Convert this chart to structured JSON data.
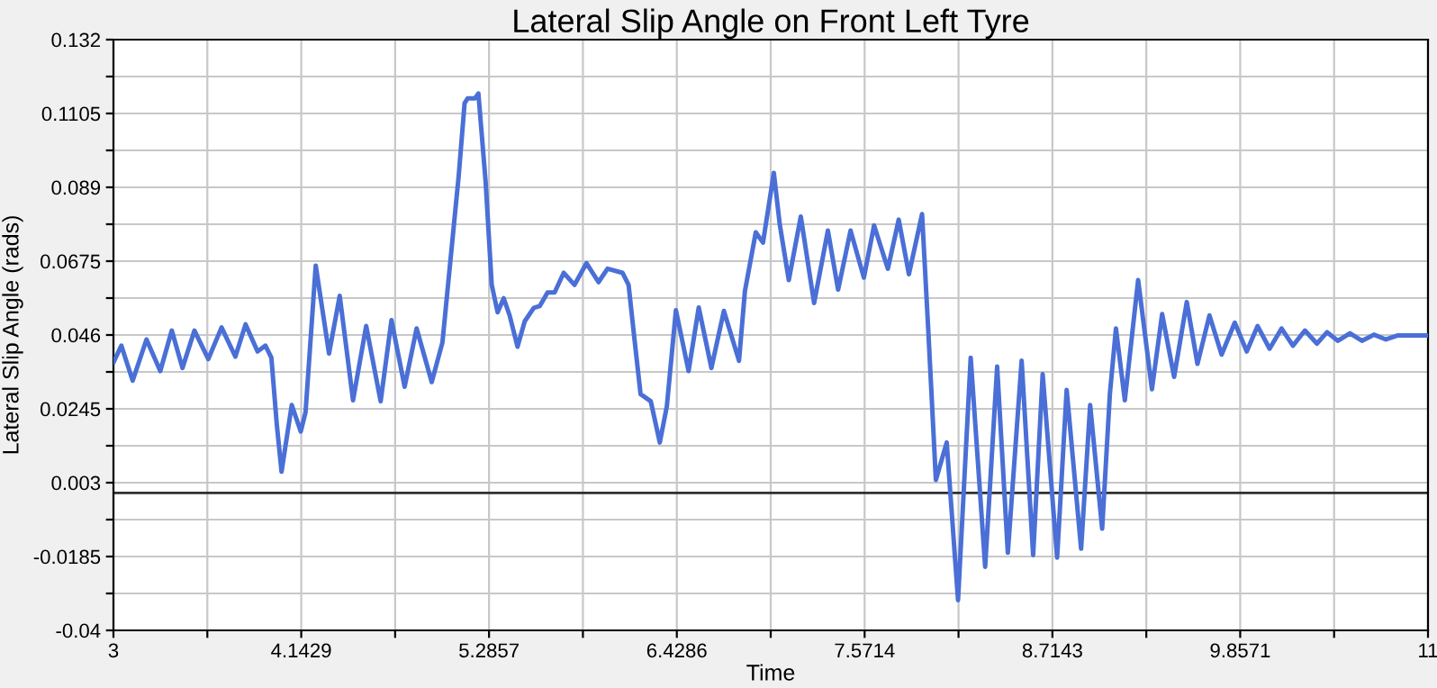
{
  "chart_data": {
    "type": "line",
    "title": "Lateral Slip Angle on Front Left Tyre",
    "xlabel": "Time",
    "ylabel": "Lateral Slip Angle (rads)",
    "xlim": [
      3,
      11
    ],
    "ylim": [
      -0.04,
      0.132
    ],
    "xticks": [
      3,
      {
        "value": 3.5714,
        "label": null
      },
      4.1429,
      {
        "value": 4.7143,
        "label": null
      },
      5.2857,
      {
        "value": 5.8571,
        "label": null
      },
      6.4286,
      {
        "value": 7.0,
        "label": null
      },
      7.5714,
      {
        "value": 8.1429,
        "label": null
      },
      8.7143,
      {
        "value": 9.2857,
        "label": null
      },
      9.8571,
      {
        "value": 10.4286,
        "label": null
      },
      11
    ],
    "yticks": [
      -0.04,
      {
        "value": -0.02925,
        "label": null
      },
      -0.0185,
      {
        "value": -0.00775,
        "label": null
      },
      0.003,
      {
        "value": 0.01375,
        "label": null
      },
      0.0245,
      {
        "value": 0.03525,
        "label": null
      },
      0.046,
      {
        "value": 0.05675,
        "label": null
      },
      0.0675,
      {
        "value": 0.07825,
        "label": null
      },
      0.089,
      {
        "value": 0.09975,
        "label": null
      },
      0.1105,
      {
        "value": 0.12125,
        "label": null
      },
      0.132
    ],
    "grid": true,
    "marker": "none",
    "line_style": "solid",
    "ref_lines": [
      {
        "axis": "y",
        "value": 0,
        "color": "#303030",
        "line_style": "solid"
      }
    ],
    "series": [
      {
        "color": "#4a6fd6",
        "x": [
          3.0,
          3.048,
          3.117,
          3.201,
          3.285,
          3.355,
          3.42,
          3.493,
          3.577,
          3.658,
          3.742,
          3.804,
          3.877,
          3.925,
          3.961,
          3.994,
          4.023,
          4.085,
          4.14,
          4.169,
          4.231,
          4.312,
          4.377,
          4.458,
          4.538,
          4.626,
          4.692,
          4.772,
          4.845,
          4.937,
          5.002,
          5.101,
          5.137,
          5.156,
          5.2,
          5.221,
          5.265,
          5.302,
          5.338,
          5.375,
          5.411,
          5.459,
          5.503,
          5.558,
          5.594,
          5.642,
          5.685,
          5.74,
          5.806,
          5.879,
          5.952,
          6.007,
          6.098,
          6.135,
          6.171,
          6.208,
          6.27,
          6.325,
          6.368,
          6.423,
          6.5,
          6.562,
          6.639,
          6.715,
          6.807,
          6.843,
          6.909,
          6.953,
          7.019,
          7.055,
          7.11,
          7.183,
          7.264,
          7.348,
          7.41,
          7.486,
          7.567,
          7.629,
          7.713,
          7.779,
          7.841,
          7.921,
          7.958,
          8.005,
          8.071,
          8.14,
          8.217,
          8.305,
          8.378,
          8.443,
          8.527,
          8.597,
          8.655,
          8.743,
          8.801,
          8.889,
          8.944,
          9.017,
          9.064,
          9.101,
          9.155,
          9.236,
          9.32,
          9.382,
          9.455,
          9.532,
          9.597,
          9.67,
          9.744,
          9.824,
          9.897,
          9.963,
          10.036,
          10.109,
          10.178,
          10.251,
          10.324,
          10.386,
          10.452,
          10.525,
          10.598,
          10.671,
          10.744,
          10.818,
          11.0
        ],
        "values": [
          0.038,
          0.0429,
          0.0327,
          0.0447,
          0.0355,
          0.0473,
          0.0364,
          0.0473,
          0.039,
          0.0482,
          0.0397,
          0.0491,
          0.0412,
          0.0429,
          0.0394,
          0.02,
          0.0062,
          0.0256,
          0.0179,
          0.0235,
          0.0662,
          0.0406,
          0.0574,
          0.027,
          0.0486,
          0.0267,
          0.0503,
          0.0309,
          0.0479,
          0.0323,
          0.0438,
          0.0923,
          0.1135,
          0.1149,
          0.1149,
          0.1163,
          0.0906,
          0.0606,
          0.0526,
          0.0567,
          0.0517,
          0.0426,
          0.05,
          0.0539,
          0.0544,
          0.0584,
          0.0584,
          0.0641,
          0.0606,
          0.0669,
          0.0614,
          0.0653,
          0.0641,
          0.0606,
          0.0447,
          0.0288,
          0.0267,
          0.0147,
          0.0253,
          0.0532,
          0.0355,
          0.054,
          0.0364,
          0.053,
          0.0385,
          0.0588,
          0.0759,
          0.0729,
          0.0932,
          0.0782,
          0.062,
          0.0805,
          0.0553,
          0.0764,
          0.0592,
          0.0764,
          0.0627,
          0.0779,
          0.0653,
          0.0796,
          0.0637,
          0.0812,
          0.0482,
          0.0038,
          0.0147,
          -0.0312,
          0.0394,
          -0.0215,
          0.0368,
          -0.0174,
          0.0385,
          -0.0181,
          0.0346,
          -0.0188,
          0.03,
          -0.0162,
          0.0256,
          -0.0104,
          0.0288,
          0.0479,
          0.027,
          0.062,
          0.0302,
          0.0521,
          0.0338,
          0.0556,
          0.0376,
          0.0517,
          0.0403,
          0.0496,
          0.0412,
          0.0486,
          0.042,
          0.0479,
          0.0429,
          0.0473,
          0.0435,
          0.0468,
          0.0443,
          0.0465,
          0.0443,
          0.0461,
          0.0447,
          0.0459,
          0.0459
        ]
      }
    ]
  }
}
